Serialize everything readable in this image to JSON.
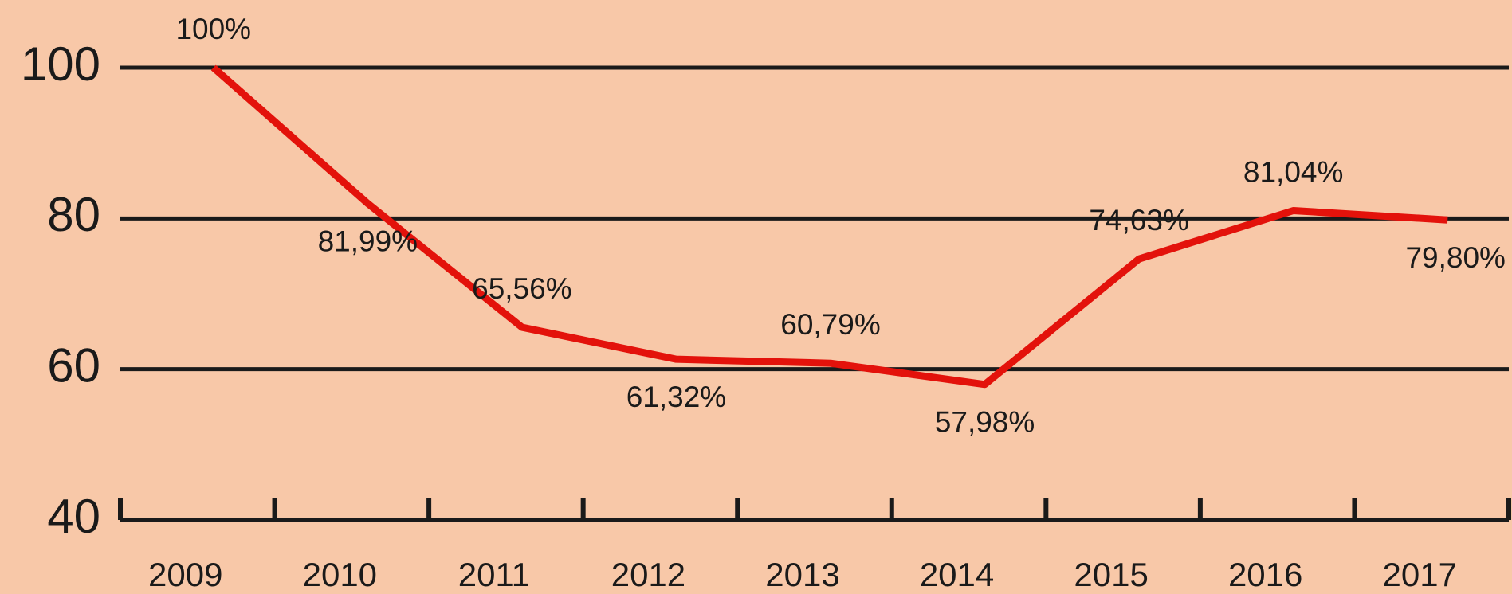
{
  "chart_data": {
    "type": "line",
    "categories": [
      "2009",
      "2010",
      "2011",
      "2012",
      "2013",
      "2014",
      "2015",
      "2016",
      "2017"
    ],
    "series": [
      {
        "name": null,
        "color": "#e3120b",
        "values": [
          100,
          81.99,
          65.56,
          61.32,
          60.79,
          57.98,
          74.63,
          81.04,
          79.8
        ],
        "value_labels": [
          "100%",
          "81,99%",
          "65,56%",
          "61,32%",
          "60,79%",
          "57,98%",
          "74,63%",
          "81,04%",
          "79,80%"
        ]
      }
    ],
    "ylim": [
      40,
      100
    ],
    "yticks": [
      40,
      60,
      80,
      100
    ],
    "grid": true,
    "background": "#f8c8a8"
  }
}
